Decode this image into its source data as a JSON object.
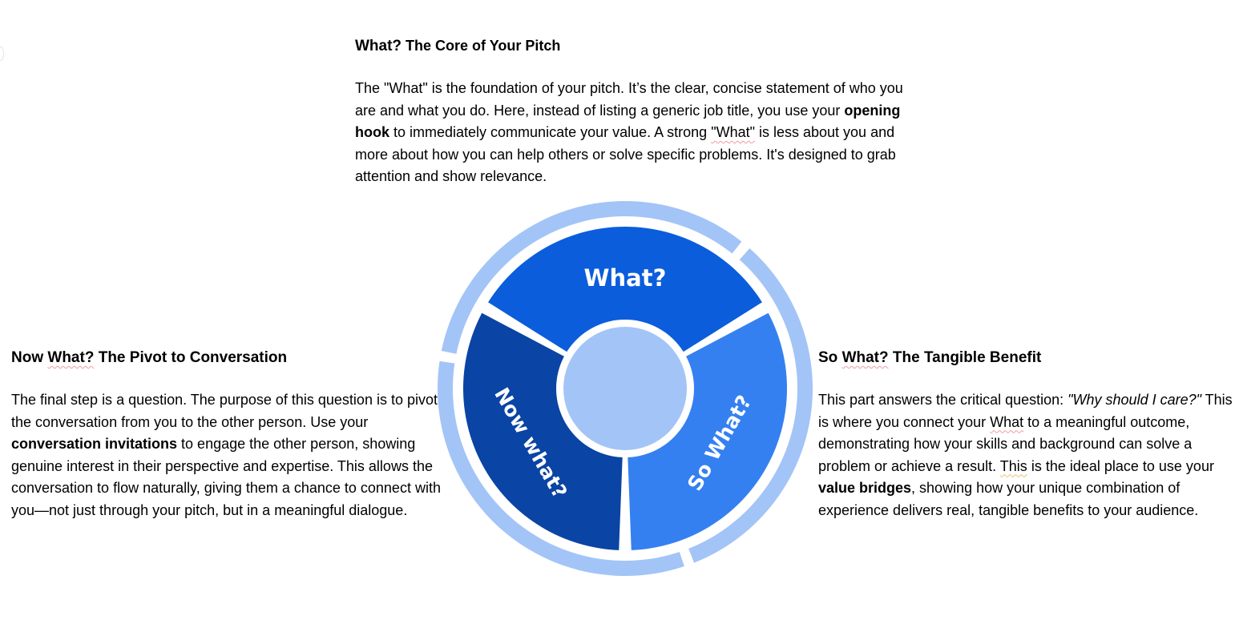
{
  "top": {
    "heading_what": "What?",
    "heading_rest": " The Core of Your Pitch",
    "p1": "The \"What\" is the foundation of your pitch. It’s the clear, concise statement of who you are and what you do. Here, instead of listing a generic job title, you use your ",
    "bold1": "opening hook",
    "p2": " to immediately communicate your value. A strong ",
    "sq1": "\"What\"",
    "p3": " is less about you and more about how you can help others or solve specific problems. It's designed to grab attention and show relevance."
  },
  "left": {
    "heading_a": "Now ",
    "heading_sq": "What?",
    "heading_b": " The Pivot to Conversation",
    "p1": "The final step is a question. The purpose of this question is to pivot the conversation from you to the other person. Use your ",
    "bold1": "conversation invitations",
    "p2": " to engage the other person, showing genuine interest in their perspective and expertise. This allows the conversation to flow naturally, giving them a chance to connect with you—not just through your pitch, but in a meaningful dialogue."
  },
  "right": {
    "heading_a": "So ",
    "heading_sq": "What?",
    "heading_b": " The Tangible Benefit",
    "p1": "This part answers the critical question: ",
    "italic1": "\"Why should I care?\"",
    "p2": " This is where you connect your ",
    "sq1": "What",
    "p3": " to a meaningful outcome, demonstrating how your skills and background can solve a problem or achieve a result. ",
    "sq2": "This",
    "p4": " is the ideal place to use your ",
    "bold1": "value bridges",
    "p5": ", showing how your unique combination of experience delivers real, tangible benefits to your audience."
  },
  "diagram": {
    "segments": [
      {
        "label": "What?",
        "color": "#0b5ddc"
      },
      {
        "label": "So What?",
        "color": "#3580f1"
      },
      {
        "label": "Now what?",
        "color": "#0a44a4"
      }
    ],
    "ring_color": "#a3c4f7",
    "center_color": "#a3c4f7"
  }
}
